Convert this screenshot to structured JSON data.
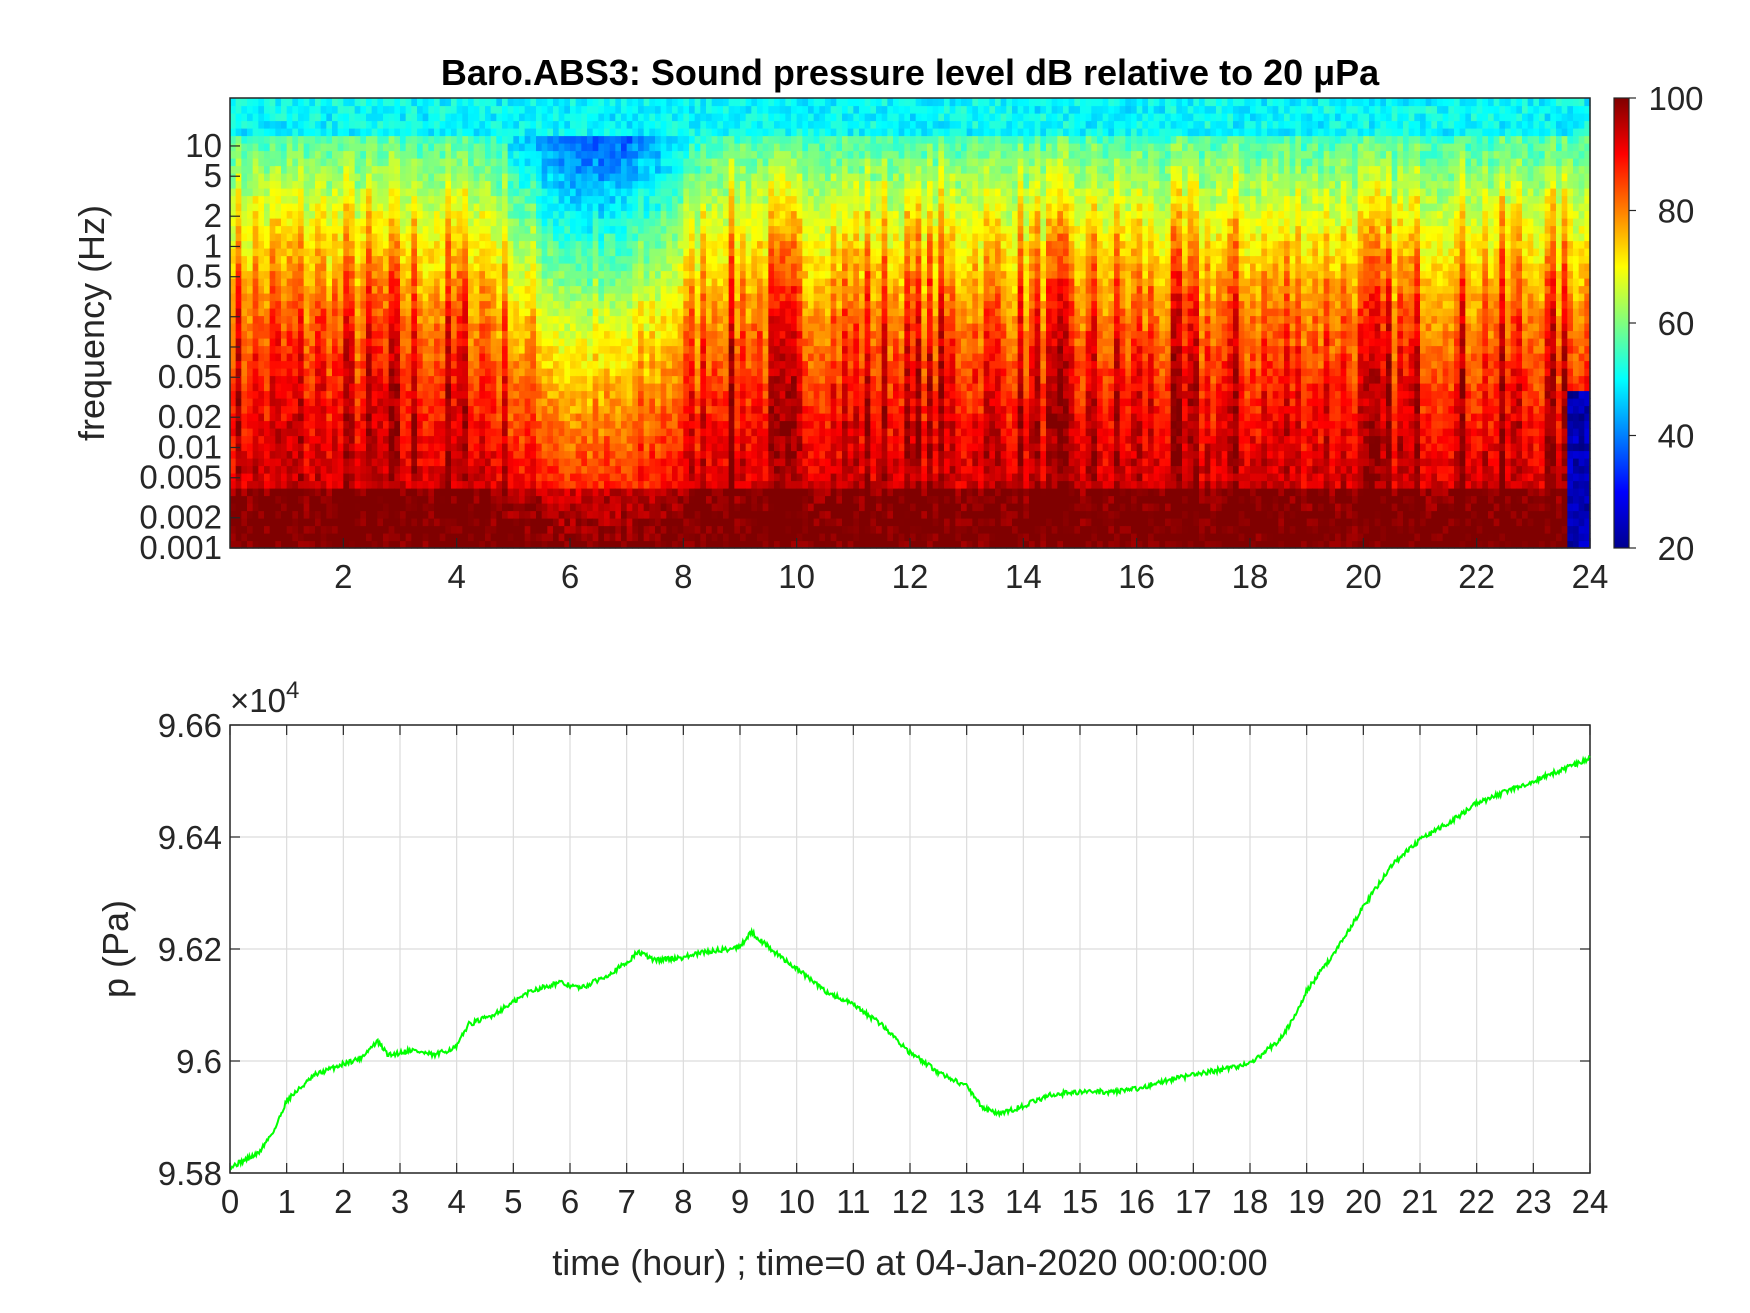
{
  "chart_data": [
    {
      "type": "heatmap",
      "title": "Baro.ABS3: Sound pressure level dB relative to 20 μPa",
      "xlabel": "",
      "ylabel": "frequency (Hz)",
      "xlim": [
        0,
        24
      ],
      "x_ticks": [
        2,
        4,
        6,
        8,
        10,
        12,
        14,
        16,
        18,
        20,
        22,
        24
      ],
      "y_scale": "log",
      "ylim": [
        0.001,
        30
      ],
      "y_ticks": [
        0.001,
        0.002,
        0.005,
        0.01,
        0.02,
        0.05,
        0.1,
        0.2,
        0.5,
        1,
        2,
        5,
        10
      ],
      "y_tick_labels": [
        "0.001",
        "0.002",
        "0.005",
        "0.01",
        "0.02",
        "0.05",
        "0.1",
        "0.2",
        "0.5",
        "1",
        "2",
        "5",
        "10"
      ],
      "colormap": "jet",
      "colorbar": {
        "range": [
          20,
          100
        ],
        "ticks": [
          20,
          40,
          60,
          80,
          100
        ],
        "placement": "right"
      },
      "grid": false,
      "description_values": {
        "quiet_interval_hours": [
          4.5,
          8.5
        ],
        "quiet_level_db": 45,
        "typical_high_freq_db": 50,
        "typical_low_freq_db": 95
      }
    },
    {
      "type": "line",
      "title": "",
      "xlabel": "time (hour) ; time=0 at 04-Jan-2020 00:00:00",
      "ylabel": "p (Pa)",
      "xlim": [
        0,
        24
      ],
      "ylim": [
        95800,
        96600
      ],
      "x_ticks": [
        0,
        1,
        2,
        3,
        4,
        5,
        6,
        7,
        8,
        9,
        10,
        11,
        12,
        13,
        14,
        15,
        16,
        17,
        18,
        19,
        20,
        21,
        22,
        23,
        24
      ],
      "y_ticks": [
        95800,
        96000,
        96200,
        96400,
        96600
      ],
      "y_tick_labels": [
        "9.58",
        "9.6",
        "9.62",
        "9.64",
        "9.66"
      ],
      "y_exponent": "×10",
      "y_exponent_power": "4",
      "grid": true,
      "series": [
        {
          "color": "#00ff00",
          "x": [
            0,
            0.5,
            0.8,
            1.0,
            1.5,
            2.0,
            2.3,
            2.6,
            2.8,
            3.2,
            3.6,
            4.0,
            4.2,
            4.6,
            5.0,
            5.3,
            5.8,
            6.2,
            6.6,
            7.0,
            7.2,
            7.5,
            8.0,
            8.4,
            8.8,
            9.0,
            9.2,
            9.6,
            10.0,
            10.5,
            11.0,
            11.5,
            12.0,
            12.5,
            13.0,
            13.3,
            13.6,
            14.0,
            14.5,
            15.0,
            15.5,
            16.0,
            16.5,
            17.0,
            17.5,
            18.0,
            18.5,
            18.8,
            19.0,
            19.5,
            20.0,
            20.5,
            21.0,
            21.5,
            22.0,
            22.5,
            23.0,
            23.5,
            24.0
          ],
          "y": [
            95810,
            95835,
            95880,
            95930,
            95975,
            95995,
            96005,
            96035,
            96010,
            96020,
            96010,
            96025,
            96065,
            96080,
            96105,
            96125,
            96140,
            96130,
            96150,
            96175,
            96195,
            96180,
            96185,
            96195,
            96200,
            96205,
            96230,
            96195,
            96165,
            96125,
            96100,
            96065,
            96015,
            95980,
            95955,
            95915,
            95905,
            95920,
            95940,
            95945,
            95945,
            95950,
            95965,
            95975,
            95985,
            95995,
            96035,
            96080,
            96125,
            96195,
            96275,
            96350,
            96395,
            96425,
            96460,
            96480,
            96500,
            96520,
            96540
          ]
        }
      ]
    }
  ]
}
